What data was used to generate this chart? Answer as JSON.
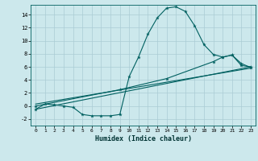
{
  "xlabel": "Humidex (Indice chaleur)",
  "bg_color": "#cce8ec",
  "grid_color": "#aaccd4",
  "line_color": "#006060",
  "xlim": [
    -0.5,
    23.5
  ],
  "ylim": [
    -3.0,
    15.5
  ],
  "xticks": [
    0,
    1,
    2,
    3,
    4,
    5,
    6,
    7,
    8,
    9,
    10,
    11,
    12,
    13,
    14,
    15,
    16,
    17,
    18,
    19,
    20,
    21,
    22,
    23
  ],
  "yticks": [
    -2,
    0,
    2,
    4,
    6,
    8,
    10,
    12,
    14
  ],
  "line1_x": [
    0,
    1,
    2,
    3,
    4,
    5,
    6,
    7,
    8,
    9,
    10,
    11,
    12,
    13,
    14,
    15,
    16,
    17,
    18,
    19,
    20,
    21,
    22,
    23
  ],
  "line1_y": [
    -0.5,
    0.3,
    0.2,
    0.0,
    -0.2,
    -1.3,
    -1.5,
    -1.5,
    -1.5,
    -1.3,
    4.5,
    7.5,
    11.0,
    13.5,
    15.0,
    15.2,
    14.5,
    12.3,
    9.4,
    7.9,
    7.5,
    7.8,
    6.2,
    6.0
  ],
  "line2_x": [
    0,
    23
  ],
  "line2_y": [
    -0.5,
    6.0
  ],
  "line3_x": [
    0,
    23
  ],
  "line3_y": [
    0.3,
    5.8
  ],
  "line4_x": [
    0,
    9,
    14,
    19,
    20,
    21,
    22,
    23
  ],
  "line4_y": [
    0.0,
    2.5,
    4.2,
    6.8,
    7.5,
    7.8,
    6.5,
    5.9
  ]
}
